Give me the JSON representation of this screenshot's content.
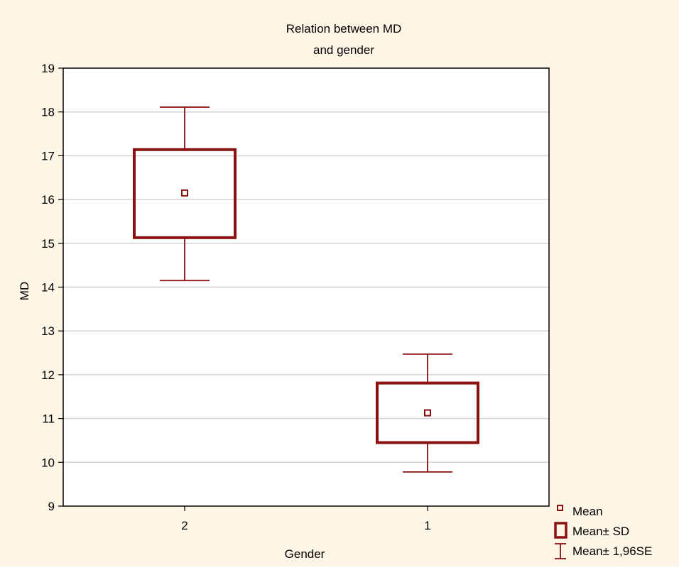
{
  "chart_data": {
    "type": "box",
    "title_lines": [
      "Relation between MD",
      "and gender"
    ],
    "xlabel": "Gender",
    "ylabel": "MD",
    "categories": [
      "2",
      "1"
    ],
    "ylim": [
      9,
      19
    ],
    "yticks": [
      9,
      10,
      11,
      12,
      13,
      14,
      15,
      16,
      17,
      18,
      19
    ],
    "grid": true,
    "legend_position": "bottom-right",
    "groups": [
      {
        "category": "2",
        "mean": 16.15,
        "sd_low": 15.13,
        "sd_high": 17.14,
        "se_low": 14.15,
        "se_high": 18.11
      },
      {
        "category": "1",
        "mean": 11.13,
        "sd_low": 10.45,
        "sd_high": 11.81,
        "se_low": 9.78,
        "se_high": 12.47
      }
    ],
    "legend": [
      {
        "key": "mean",
        "label": "Mean"
      },
      {
        "key": "sd",
        "label": "Mean± SD"
      },
      {
        "key": "se",
        "label": "Mean± 1,96SE"
      }
    ],
    "colors": {
      "background": "#fdf6e7",
      "plot_area": "#ffffff",
      "series": "#8b1010",
      "grid": "#d4d4d4",
      "axis": "#000000"
    }
  }
}
